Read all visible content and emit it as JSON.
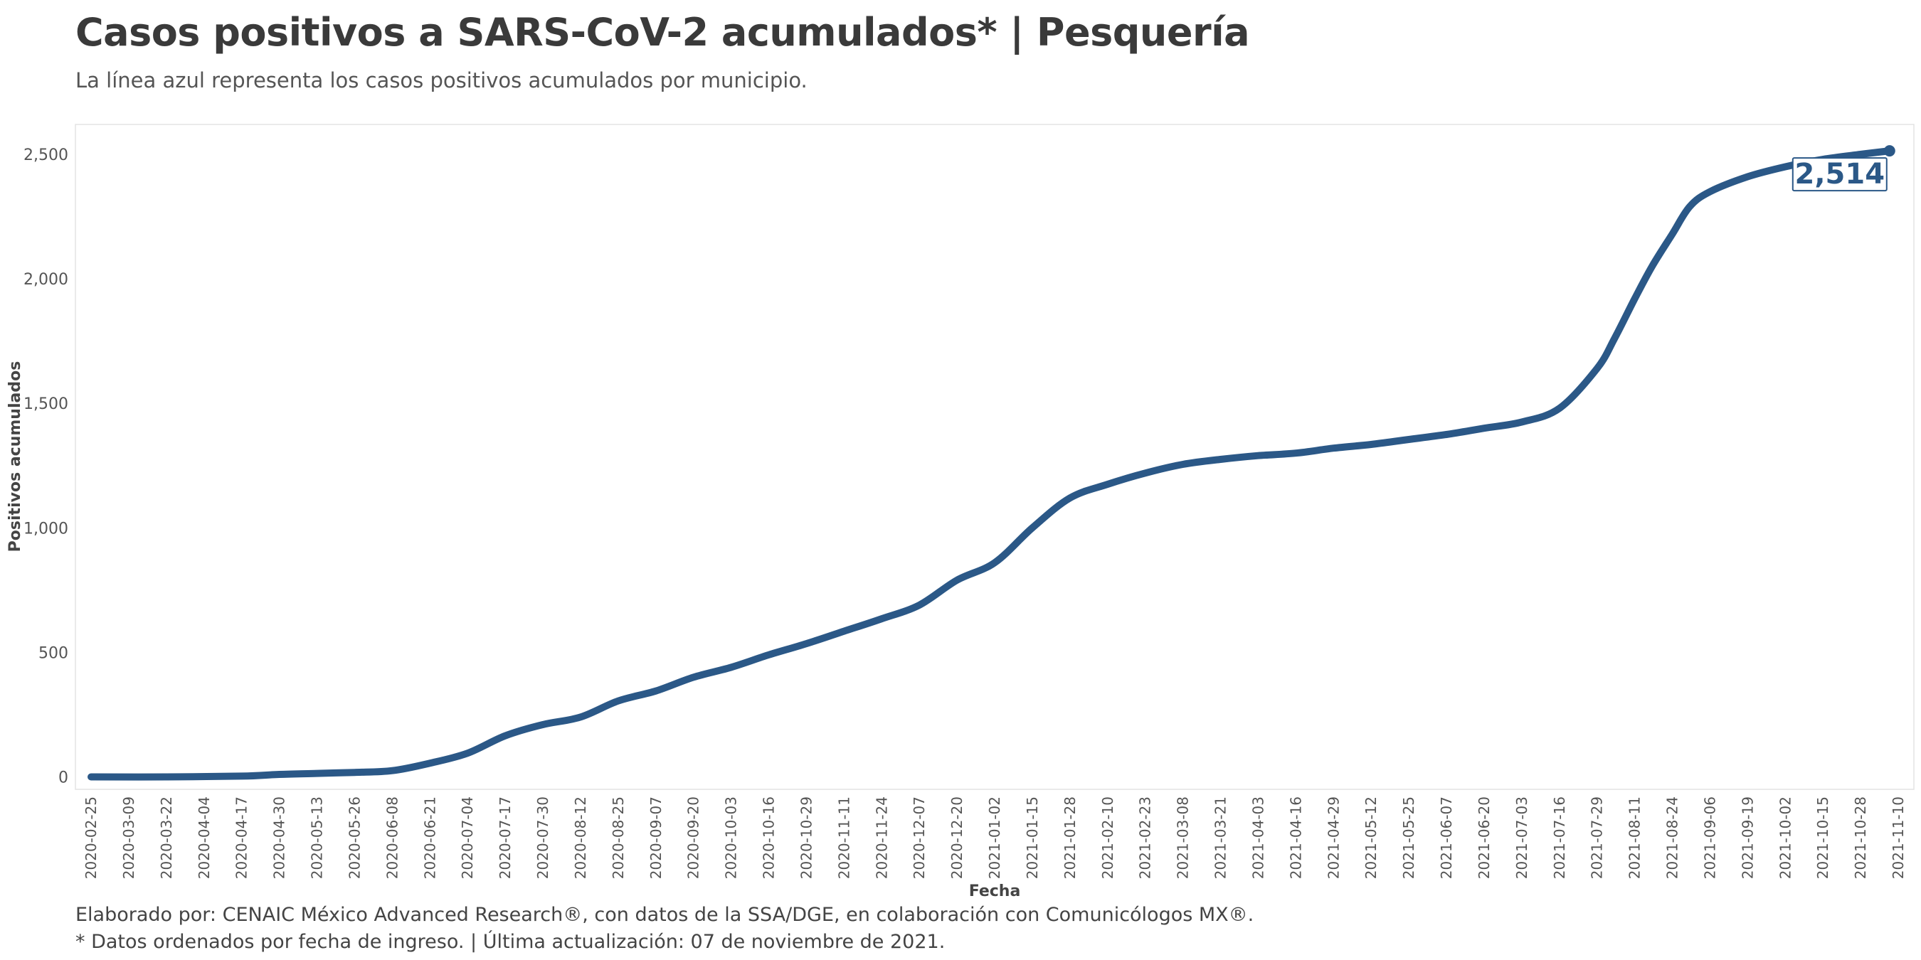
{
  "title": "Casos positivos a SARS-CoV-2 acumulados* | Pesquería",
  "subtitle": "La línea azul representa los casos positivos acumulados por municipio.",
  "caption_lines": [
    "Elaborado por: CENAIC México Advanced Research®, con datos de la SSA/DGE, en colaboración con Comunicólogos MX®.",
    "* Datos ordenados por fecha de ingreso. | Última actualización: 07 de noviembre de 2021."
  ],
  "colors": {
    "series": "#2b5887",
    "axis_text": "#555555",
    "panel_border": "#e3e3e3"
  },
  "chart_data": {
    "type": "line",
    "xlabel": "Fecha",
    "ylabel": "Positivos acumulados",
    "ylim": [
      -50,
      2620
    ],
    "xlim": [
      "2020-02-25",
      "2021-11-10"
    ],
    "grid": false,
    "legend": "none",
    "x_ticks": [
      "2020-02-25",
      "2020-03-09",
      "2020-03-22",
      "2020-04-04",
      "2020-04-17",
      "2020-04-30",
      "2020-05-13",
      "2020-05-26",
      "2020-06-08",
      "2020-06-21",
      "2020-07-04",
      "2020-07-17",
      "2020-07-30",
      "2020-08-12",
      "2020-08-25",
      "2020-09-07",
      "2020-09-20",
      "2020-10-03",
      "2020-10-16",
      "2020-10-29",
      "2020-11-11",
      "2020-11-24",
      "2020-12-07",
      "2020-12-20",
      "2021-01-02",
      "2021-01-15",
      "2021-01-28",
      "2021-02-10",
      "2021-02-23",
      "2021-03-08",
      "2021-03-21",
      "2021-04-03",
      "2021-04-16",
      "2021-04-29",
      "2021-05-12",
      "2021-05-25",
      "2021-06-07",
      "2021-06-20",
      "2021-07-03",
      "2021-07-16",
      "2021-07-29",
      "2021-08-11",
      "2021-08-24",
      "2021-09-06",
      "2021-09-19",
      "2021-10-02",
      "2021-10-15",
      "2021-10-28",
      "2021-11-10"
    ],
    "y_ticks": [
      0,
      500,
      1000,
      1500,
      2000,
      2500
    ],
    "y_tick_labels": [
      "0",
      "500",
      "1,000",
      "1,500",
      "2,000",
      "2,500"
    ],
    "series": [
      {
        "x": [
          "2020-02-25",
          "2020-03-22",
          "2020-04-17",
          "2020-04-30",
          "2020-05-13",
          "2020-05-26",
          "2020-06-08",
          "2020-06-21",
          "2020-07-04",
          "2020-07-17",
          "2020-07-30",
          "2020-08-12",
          "2020-08-25",
          "2020-09-07",
          "2020-09-20",
          "2020-10-03",
          "2020-10-16",
          "2020-10-29",
          "2020-11-11",
          "2020-11-24",
          "2020-12-07",
          "2020-12-20",
          "2021-01-02",
          "2021-01-15",
          "2021-01-28",
          "2021-02-10",
          "2021-02-23",
          "2021-03-08",
          "2021-03-21",
          "2021-04-03",
          "2021-04-16",
          "2021-04-29",
          "2021-05-12",
          "2021-05-25",
          "2021-06-07",
          "2021-06-20",
          "2021-07-03",
          "2021-07-16",
          "2021-07-29",
          "2021-08-04",
          "2021-08-11",
          "2021-08-17",
          "2021-08-24",
          "2021-08-30",
          "2021-09-06",
          "2021-09-19",
          "2021-10-02",
          "2021-10-15",
          "2021-10-28",
          "2021-11-07"
        ],
        "values": [
          0,
          0,
          3,
          10,
          14,
          18,
          25,
          55,
          95,
          165,
          210,
          240,
          305,
          345,
          400,
          440,
          490,
          535,
          585,
          635,
          690,
          790,
          860,
          1000,
          1120,
          1175,
          1220,
          1255,
          1275,
          1290,
          1300,
          1320,
          1335,
          1355,
          1375,
          1400,
          1425,
          1480,
          1640,
          1760,
          1920,
          2050,
          2180,
          2290,
          2350,
          2410,
          2450,
          2480,
          2500,
          2514
        ]
      }
    ],
    "last_value_label": "2,514"
  }
}
